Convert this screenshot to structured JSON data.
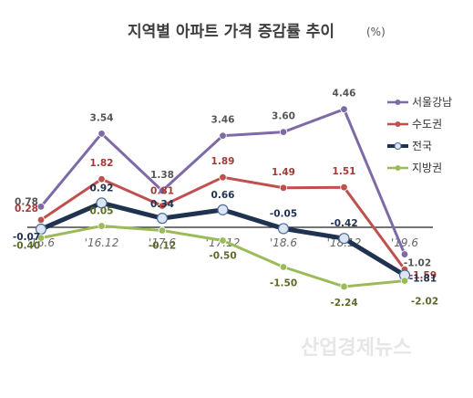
{
  "chart_data": {
    "type": "line",
    "title": "지역별 아파트 가격 증감률 추이",
    "unit": "(%)",
    "categories": [
      "'16.6",
      "'16.12",
      "'17.6",
      "'17.12",
      "'18.6",
      "'18.12",
      "'19.6"
    ],
    "series": [
      {
        "name": "서울강남",
        "color": "#7d6aa6",
        "values": [
          0.78,
          3.54,
          1.38,
          3.46,
          3.6,
          4.46,
          -1.02
        ]
      },
      {
        "name": "수도권",
        "color": "#c0504d",
        "values": [
          0.28,
          1.82,
          0.81,
          1.89,
          1.49,
          1.51,
          -1.59
        ]
      },
      {
        "name": "전국",
        "color": "#1f3250",
        "values": [
          -0.07,
          0.92,
          0.34,
          0.66,
          -0.05,
          -0.42,
          -1.81
        ]
      },
      {
        "name": "지방권",
        "color": "#9bbb59",
        "values": [
          -0.4,
          0.05,
          -0.12,
          -0.5,
          -1.5,
          -2.24,
          -2.02
        ]
      }
    ],
    "legend_position": "right",
    "grid": false
  },
  "watermark": "산업경제뉴스"
}
